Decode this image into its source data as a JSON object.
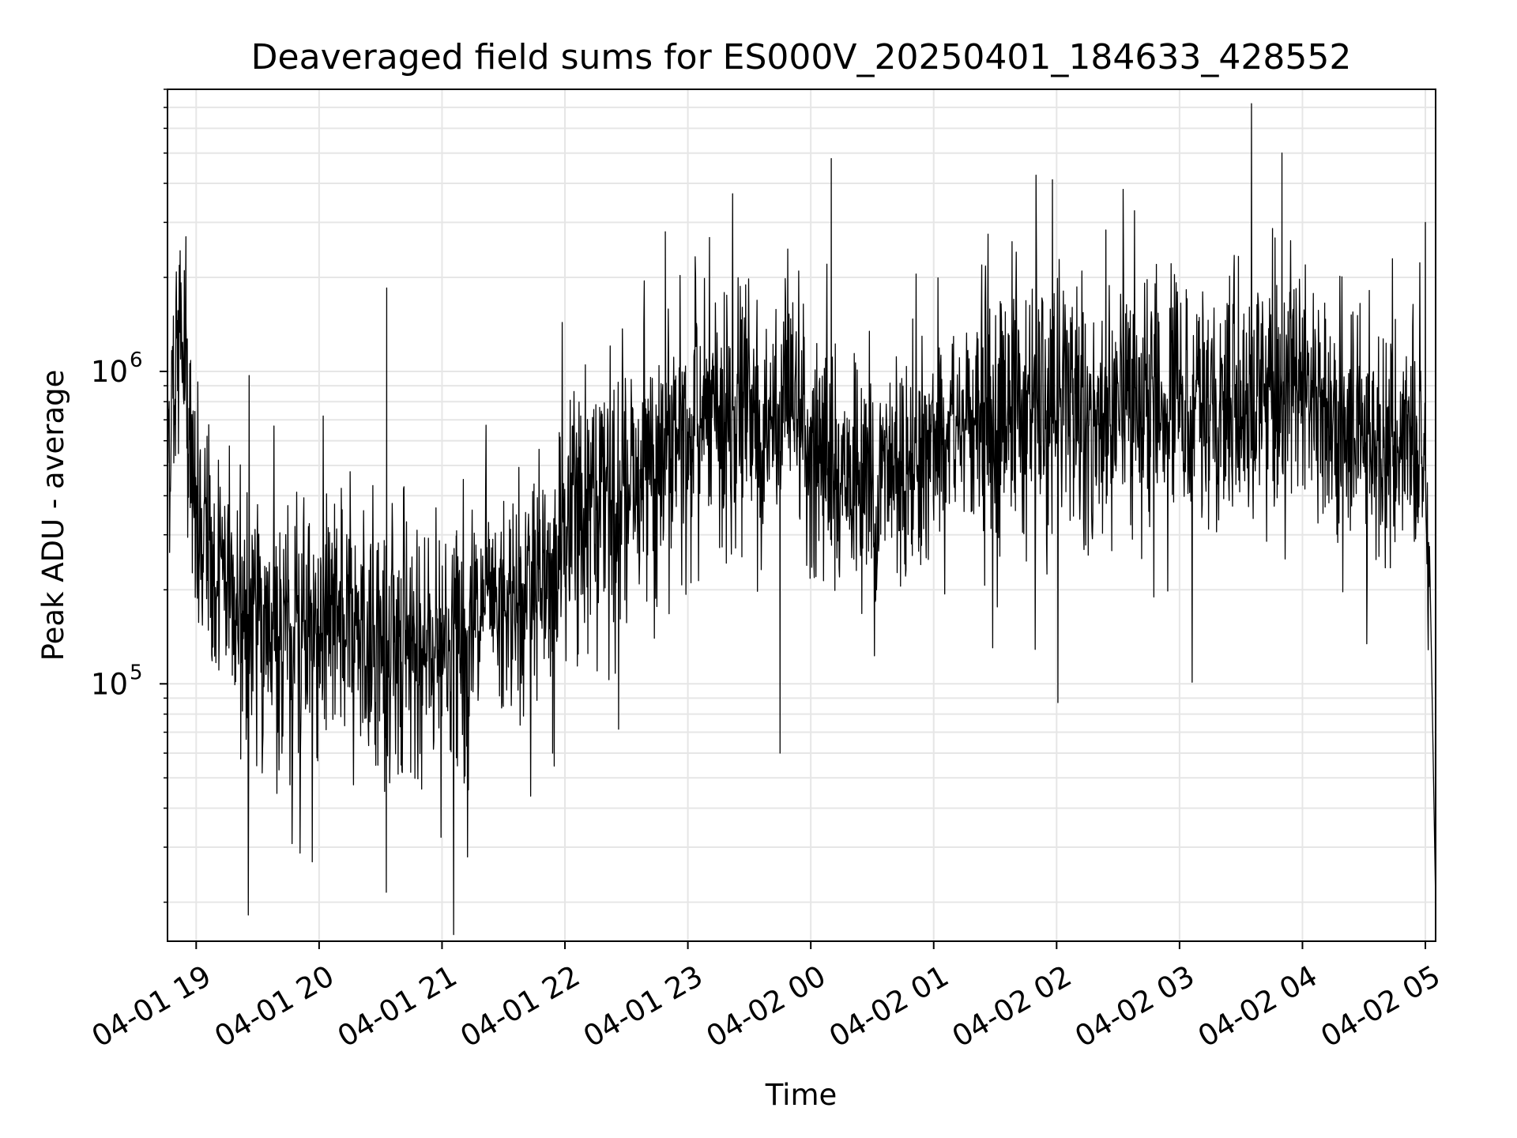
{
  "chart_data": {
    "type": "line",
    "title": "Deaveraged field sums for ES000V_20250401_184633_428552",
    "xlabel": "Time",
    "ylabel": "Peak ADU - average",
    "yscale": "log",
    "ylim": [
      15000,
      8000000
    ],
    "xlim": [
      "2025-04-01 18:46",
      "2025-04-02 05:05"
    ],
    "grid": true,
    "line_color": "#000000",
    "x_ticks": [
      {
        "t": "2025-04-01 19:00",
        "label": "04-01 19"
      },
      {
        "t": "2025-04-01 20:00",
        "label": "04-01 20"
      },
      {
        "t": "2025-04-01 21:00",
        "label": "04-01 21"
      },
      {
        "t": "2025-04-01 22:00",
        "label": "04-01 22"
      },
      {
        "t": "2025-04-01 23:00",
        "label": "04-01 23"
      },
      {
        "t": "2025-04-02 00:00",
        "label": "04-02 00"
      },
      {
        "t": "2025-04-02 01:00",
        "label": "04-02 01"
      },
      {
        "t": "2025-04-02 02:00",
        "label": "04-02 02"
      },
      {
        "t": "2025-04-02 03:00",
        "label": "04-02 03"
      },
      {
        "t": "2025-04-02 04:00",
        "label": "04-02 04"
      },
      {
        "t": "2025-04-02 05:00",
        "label": "04-02 05"
      }
    ],
    "y_ticks": [
      {
        "value": 100000,
        "base": "10",
        "exp": "5"
      },
      {
        "value": 1000000,
        "base": "10",
        "exp": "6"
      }
    ],
    "x": [
      "2025-04-01 18:46",
      "2025-04-01 18:53",
      "2025-04-01 19:00",
      "2025-04-01 19:10",
      "2025-04-01 19:20",
      "2025-04-01 19:30",
      "2025-04-01 19:40",
      "2025-04-01 19:50",
      "2025-04-01 20:00",
      "2025-04-01 20:10",
      "2025-04-01 20:20",
      "2025-04-01 20:30",
      "2025-04-01 20:40",
      "2025-04-01 20:50",
      "2025-04-01 21:00",
      "2025-04-01 21:10",
      "2025-04-01 21:20",
      "2025-04-01 21:30",
      "2025-04-01 21:40",
      "2025-04-01 21:50",
      "2025-04-01 22:00",
      "2025-04-01 22:10",
      "2025-04-01 22:20",
      "2025-04-01 22:30",
      "2025-04-01 22:40",
      "2025-04-01 22:50",
      "2025-04-01 23:00",
      "2025-04-01 23:10",
      "2025-04-01 23:20",
      "2025-04-01 23:30",
      "2025-04-01 23:40",
      "2025-04-01 23:50",
      "2025-04-02 00:00",
      "2025-04-02 00:10",
      "2025-04-02 00:20",
      "2025-04-02 00:30",
      "2025-04-02 00:40",
      "2025-04-02 00:50",
      "2025-04-02 01:00",
      "2025-04-02 01:10",
      "2025-04-02 01:20",
      "2025-04-02 01:30",
      "2025-04-02 01:40",
      "2025-04-02 01:50",
      "2025-04-02 02:00",
      "2025-04-02 02:10",
      "2025-04-02 02:20",
      "2025-04-02 02:30",
      "2025-04-02 02:40",
      "2025-04-02 02:50",
      "2025-04-02 03:00",
      "2025-04-02 03:10",
      "2025-04-02 03:20",
      "2025-04-02 03:30",
      "2025-04-02 03:40",
      "2025-04-02 03:50",
      "2025-04-02 04:00",
      "2025-04-02 04:10",
      "2025-04-02 04:20",
      "2025-04-02 04:30",
      "2025-04-02 04:40",
      "2025-04-02 04:50",
      "2025-04-02 05:00",
      "2025-04-02 05:03",
      "2025-04-02 05:05"
    ],
    "y": [
      600000,
      1400000,
      300000,
      220000,
      180000,
      160000,
      150000,
      140000,
      150000,
      160000,
      150000,
      140000,
      130000,
      130000,
      140000,
      150000,
      160000,
      170000,
      190000,
      200000,
      300000,
      350000,
      380000,
      420000,
      500000,
      560000,
      650000,
      700000,
      750000,
      800000,
      750000,
      700000,
      600000,
      500000,
      450000,
      400000,
      500000,
      550000,
      600000,
      650000,
      700000,
      700000,
      750000,
      780000,
      800000,
      750000,
      700000,
      720000,
      780000,
      800000,
      820000,
      800000,
      760000,
      750000,
      850000,
      900000,
      800000,
      750000,
      700000,
      650000,
      620000,
      600000,
      650000,
      120000,
      20000
    ],
    "peaks": [
      {
        "t": "2025-04-01 18:55",
        "value": 2700000
      },
      {
        "t": "2025-04-01 20:33",
        "value": 1850000
      },
      {
        "t": "2025-04-01 22:49",
        "value": 2800000
      },
      {
        "t": "2025-04-02 00:10",
        "value": 4800000
      },
      {
        "t": "2025-04-02 03:50",
        "value": 5000000
      },
      {
        "t": "2025-04-02 05:00",
        "value": 3000000
      }
    ],
    "troughs": [
      {
        "t": "2025-04-01 20:40",
        "value": 55000
      },
      {
        "t": "2025-04-01 21:07",
        "value": 58000
      },
      {
        "t": "2025-04-01 21:54",
        "value": 60000
      },
      {
        "t": "2025-04-01 23:45",
        "value": 60000
      }
    ]
  }
}
